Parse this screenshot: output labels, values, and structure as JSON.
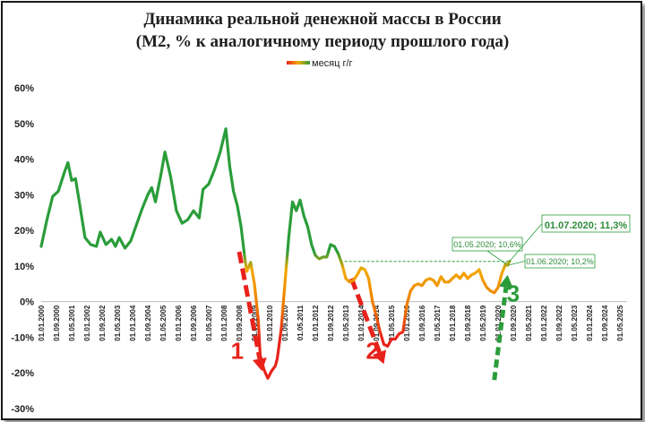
{
  "chart_data": {
    "type": "line",
    "title": "Динамика реальной денежной массы в России",
    "subtitle": "(М2, % к аналогичному периоду прошлого года)",
    "xlabel": "",
    "ylabel": "",
    "legend": {
      "label": "месяц г/г",
      "placement": "top-center"
    },
    "ylim": [
      -30,
      60
    ],
    "yticks": [
      "60%",
      "50%",
      "40%",
      "30%",
      "20%",
      "10%",
      "0%",
      "-10%",
      "-20%",
      "-30%"
    ],
    "x_start": "2000-01",
    "xticks": [
      "01.01.2000",
      "01.09.2000",
      "01.05.2001",
      "01.01.2002",
      "01.09.2002",
      "01.05.2003",
      "01.01.2004",
      "01.09.2004",
      "01.05.2005",
      "01.01.2006",
      "01.09.2006",
      "01.05.2007",
      "01.01.2008",
      "01.09.2008",
      "01.05.2009",
      "01.01.2010",
      "01.09.2010",
      "01.05.2011",
      "01.01.2012",
      "01.09.2012",
      "01.05.2013",
      "01.01.2014",
      "01.09.2014",
      "01.05.2015",
      "01.01.2016",
      "01.09.2016",
      "01.05.2017",
      "01.01.2018",
      "01.09.2018",
      "01.05.2019",
      "01.01.2020",
      "01.09.2020",
      "01.05.2021",
      "01.01.2022",
      "01.09.2022",
      "01.05.2023",
      "01.01.2024",
      "01.09.2024",
      "01.05.2025"
    ],
    "series": [
      {
        "name": "месяц г/г",
        "colors": {
          "high": "#2a9d3a",
          "mid": "#f2a900",
          "low": "#e8221b"
        },
        "points": [
          [
            "2000-01",
            15.5
          ],
          [
            "2000-04",
            23
          ],
          [
            "2000-07",
            29.5
          ],
          [
            "2000-10",
            31
          ],
          [
            "2001-01",
            36
          ],
          [
            "2001-03",
            39
          ],
          [
            "2001-05",
            34
          ],
          [
            "2001-07",
            34.5
          ],
          [
            "2001-09",
            28
          ],
          [
            "2001-12",
            18
          ],
          [
            "2002-03",
            16
          ],
          [
            "2002-06",
            15.5
          ],
          [
            "2002-08",
            19.5
          ],
          [
            "2002-11",
            16
          ],
          [
            "2003-02",
            17.5
          ],
          [
            "2003-04",
            15.5
          ],
          [
            "2003-06",
            18
          ],
          [
            "2003-09",
            15
          ],
          [
            "2003-12",
            17
          ],
          [
            "2004-02",
            20
          ],
          [
            "2004-06",
            26
          ],
          [
            "2004-09",
            30
          ],
          [
            "2004-11",
            32
          ],
          [
            "2005-01",
            28
          ],
          [
            "2005-04",
            36
          ],
          [
            "2005-06",
            42
          ],
          [
            "2005-09",
            35
          ],
          [
            "2005-12",
            25.5
          ],
          [
            "2006-03",
            22
          ],
          [
            "2006-06",
            23
          ],
          [
            "2006-09",
            25.5
          ],
          [
            "2006-12",
            23.5
          ],
          [
            "2007-02",
            31.5
          ],
          [
            "2007-05",
            33
          ],
          [
            "2007-08",
            37
          ],
          [
            "2007-11",
            42
          ],
          [
            "2008-02",
            48.5
          ],
          [
            "2008-04",
            38
          ],
          [
            "2008-06",
            31
          ],
          [
            "2008-08",
            27
          ],
          [
            "2008-10",
            21
          ],
          [
            "2008-12",
            12
          ],
          [
            "2009-01",
            8.5
          ],
          [
            "2009-03",
            11
          ],
          [
            "2009-05",
            5
          ],
          [
            "2009-07",
            -5
          ],
          [
            "2009-08",
            -15
          ],
          [
            "2009-10",
            -19
          ],
          [
            "2009-12",
            -21.5
          ],
          [
            "2010-02",
            -19.5
          ],
          [
            "2010-04",
            -18
          ],
          [
            "2010-05",
            -16
          ],
          [
            "2010-07",
            -8
          ],
          [
            "2010-09",
            5
          ],
          [
            "2010-11",
            18
          ],
          [
            "2011-01",
            28
          ],
          [
            "2011-03",
            25.5
          ],
          [
            "2011-05",
            28.5
          ],
          [
            "2011-07",
            24
          ],
          [
            "2011-09",
            21
          ],
          [
            "2011-11",
            16
          ],
          [
            "2012-01",
            13
          ],
          [
            "2012-03",
            12
          ],
          [
            "2012-05",
            12.5
          ],
          [
            "2012-07",
            12.5
          ],
          [
            "2012-09",
            16
          ],
          [
            "2012-11",
            15.5
          ],
          [
            "2013-01",
            13.5
          ],
          [
            "2013-03",
            10.5
          ],
          [
            "2013-05",
            6.5
          ],
          [
            "2013-07",
            5.5
          ],
          [
            "2013-09",
            6
          ],
          [
            "2013-11",
            7.5
          ],
          [
            "2014-01",
            9.5
          ],
          [
            "2014-03",
            9
          ],
          [
            "2014-05",
            6.5
          ],
          [
            "2014-07",
            0
          ],
          [
            "2014-09",
            -4
          ],
          [
            "2014-11",
            -8.5
          ],
          [
            "2015-01",
            -12
          ],
          [
            "2015-03",
            -12.5
          ],
          [
            "2015-05",
            -10.5
          ],
          [
            "2015-07",
            -10.5
          ],
          [
            "2015-09",
            -9
          ],
          [
            "2015-11",
            -8.5
          ],
          [
            "2016-01",
            -1
          ],
          [
            "2016-03",
            3
          ],
          [
            "2016-05",
            4.5
          ],
          [
            "2016-07",
            5
          ],
          [
            "2016-09",
            4.5
          ],
          [
            "2016-11",
            6
          ],
          [
            "2017-01",
            6.5
          ],
          [
            "2017-03",
            6
          ],
          [
            "2017-05",
            4.5
          ],
          [
            "2017-07",
            7
          ],
          [
            "2017-09",
            5.5
          ],
          [
            "2017-11",
            5.5
          ],
          [
            "2018-01",
            6.5
          ],
          [
            "2018-03",
            7.5
          ],
          [
            "2018-05",
            6.5
          ],
          [
            "2018-07",
            8
          ],
          [
            "2018-09",
            6.5
          ],
          [
            "2018-11",
            7.5
          ],
          [
            "2019-01",
            8
          ],
          [
            "2019-03",
            9
          ],
          [
            "2019-05",
            6
          ],
          [
            "2019-07",
            4
          ],
          [
            "2019-09",
            3
          ],
          [
            "2019-11",
            2.5
          ],
          [
            "2020-01",
            4
          ],
          [
            "2020-03",
            8
          ],
          [
            "2020-05",
            10.6
          ],
          [
            "2020-06",
            10.2
          ],
          [
            "2020-07",
            11.3
          ]
        ]
      }
    ],
    "reference_line": {
      "value": 11.3,
      "color": "#2a9d3a",
      "style": "dashed"
    },
    "annotations": [
      {
        "label": "01.05.2020; 10,6%",
        "x": "2020-05",
        "y": 10.6
      },
      {
        "label": "01.06.2020; 10,2%",
        "x": "2020-06",
        "y": 10.2
      },
      {
        "label": "01.07.2020; 11,3%",
        "x": "2020-07",
        "y": 11.3
      }
    ],
    "markers": [
      {
        "label": "1",
        "color": "#e8221b",
        "from": "2008-10",
        "to": "2009-11"
      },
      {
        "label": "2",
        "color": "#e8221b",
        "from": "2013-07",
        "to": "2015-01"
      },
      {
        "label": "3",
        "color": "#2a9d3a",
        "from": "2019-11",
        "to": "2020-06"
      }
    ],
    "grid": false
  }
}
